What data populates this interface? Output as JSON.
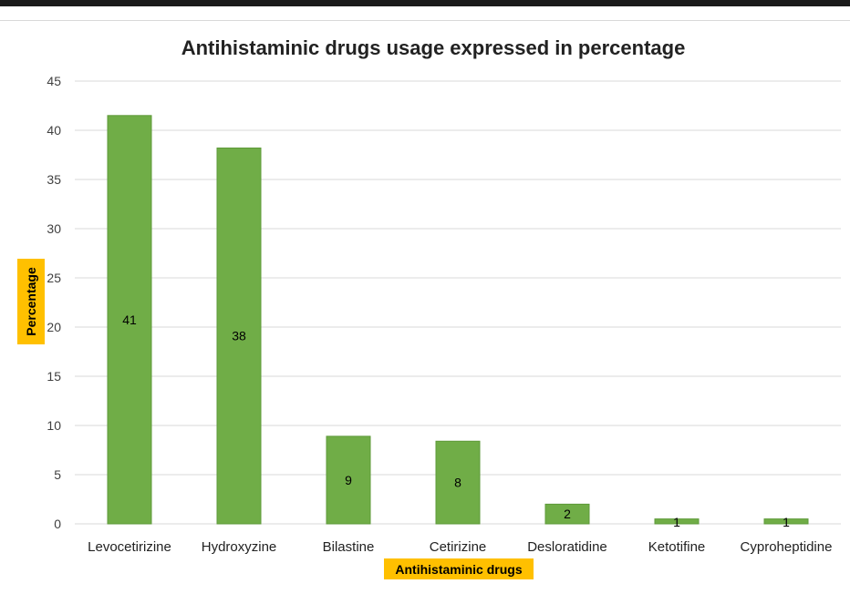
{
  "chart_data": {
    "type": "bar",
    "title": "Antihistaminic drugs usage expressed in percentage",
    "xlabel": "Antihistaminic drugs",
    "ylabel": "Percentage",
    "categories": [
      "Levocetirizine",
      "Hydroxyzine",
      "Bilastine",
      "Cetirizine",
      "Desloratidine",
      "Ketotifine",
      "Cyproheptidine"
    ],
    "values": [
      41.5,
      38.2,
      8.9,
      8.4,
      2.0,
      0.5,
      0.5
    ],
    "data_labels": [
      "41",
      "38",
      "9",
      "8",
      "2",
      "1",
      "1"
    ],
    "ylim": [
      0,
      45
    ],
    "yticks": [
      0,
      5,
      10,
      15,
      20,
      25,
      30,
      35,
      40,
      45
    ],
    "grid": true,
    "legend": "none",
    "colors": {
      "bar": "#70ad47",
      "bar_edge": "#5e9a3a",
      "grid": "#d9d9d9",
      "axis_title_bg": "#ffc000"
    }
  }
}
